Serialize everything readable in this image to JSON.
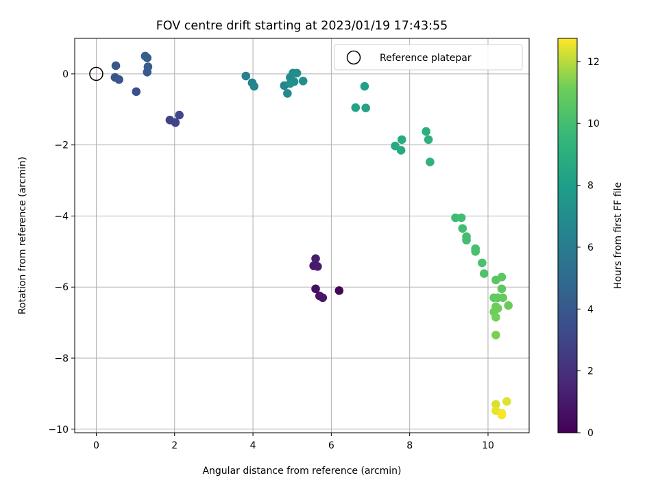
{
  "chart_data": {
    "type": "scatter",
    "title": "FOV centre drift starting at 2023/01/19 17:43:55",
    "xlabel": "Angular distance from reference (arcmin)",
    "ylabel": "Rotation from reference (arcmin)",
    "xlim": [
      -0.55,
      11.05
    ],
    "ylim": [
      -10.1,
      1.0
    ],
    "xticks": [
      0,
      2,
      4,
      6,
      8,
      10
    ],
    "yticks": [
      0,
      -2,
      -4,
      -6,
      -8,
      -10
    ],
    "xtick_labels": [
      "0",
      "2",
      "4",
      "6",
      "8",
      "10"
    ],
    "ytick_labels": [
      "0",
      "−2",
      "−4",
      "−6",
      "−8",
      "−10"
    ],
    "grid": true,
    "legend": {
      "placement": "top-right",
      "entries": [
        "Reference platepar"
      ]
    },
    "reference_point": {
      "x": 0,
      "y": 0,
      "label": "Reference platepar"
    },
    "colorbar": {
      "label": "Hours from first FF file",
      "colormap": "viridis",
      "range": [
        0,
        12.75
      ],
      "ticks": [
        0,
        2,
        4,
        6,
        8,
        10,
        12
      ],
      "tick_labels": [
        "0",
        "2",
        "4",
        "6",
        "8",
        "10",
        "12"
      ]
    },
    "points": [
      {
        "x": 6.2,
        "y": -6.1,
        "t": 0.2
      },
      {
        "x": 5.6,
        "y": -6.05,
        "t": 0.6
      },
      {
        "x": 5.7,
        "y": -6.25,
        "t": 0.8
      },
      {
        "x": 5.78,
        "y": -6.3,
        "t": 0.9
      },
      {
        "x": 5.55,
        "y": -5.4,
        "t": 1.0
      },
      {
        "x": 5.65,
        "y": -5.42,
        "t": 1.1
      },
      {
        "x": 5.6,
        "y": -5.2,
        "t": 1.2
      },
      {
        "x": 1.88,
        "y": -1.3,
        "t": 2.9
      },
      {
        "x": 2.02,
        "y": -1.37,
        "t": 3.0
      },
      {
        "x": 2.12,
        "y": -1.16,
        "t": 3.1
      },
      {
        "x": 1.02,
        "y": -0.5,
        "t": 3.5
      },
      {
        "x": 0.48,
        "y": -0.1,
        "t": 3.7
      },
      {
        "x": 0.58,
        "y": -0.16,
        "t": 3.8
      },
      {
        "x": 0.5,
        "y": 0.23,
        "t": 3.9
      },
      {
        "x": 1.3,
        "y": 0.05,
        "t": 4.0
      },
      {
        "x": 1.32,
        "y": 0.2,
        "t": 4.1
      },
      {
        "x": 1.3,
        "y": 0.45,
        "t": 4.2
      },
      {
        "x": 1.25,
        "y": 0.5,
        "t": 4.3
      },
      {
        "x": 3.82,
        "y": -0.06,
        "t": 6.3
      },
      {
        "x": 3.98,
        "y": -0.25,
        "t": 6.4
      },
      {
        "x": 4.03,
        "y": -0.35,
        "t": 6.5
      },
      {
        "x": 4.8,
        "y": -0.33,
        "t": 6.6
      },
      {
        "x": 4.88,
        "y": -0.55,
        "t": 6.7
      },
      {
        "x": 4.95,
        "y": -0.1,
        "t": 6.8
      },
      {
        "x": 5.02,
        "y": 0.02,
        "t": 6.9
      },
      {
        "x": 5.12,
        "y": 0.02,
        "t": 7.0
      },
      {
        "x": 5.05,
        "y": -0.22,
        "t": 7.0
      },
      {
        "x": 5.28,
        "y": -0.2,
        "t": 7.1
      },
      {
        "x": 4.95,
        "y": -0.27,
        "t": 7.2
      },
      {
        "x": 6.85,
        "y": -0.35,
        "t": 8.1
      },
      {
        "x": 6.62,
        "y": -0.95,
        "t": 8.2
      },
      {
        "x": 6.88,
        "y": -0.96,
        "t": 8.3
      },
      {
        "x": 7.63,
        "y": -2.03,
        "t": 8.6
      },
      {
        "x": 7.78,
        "y": -2.15,
        "t": 8.7
      },
      {
        "x": 7.8,
        "y": -1.85,
        "t": 8.8
      },
      {
        "x": 8.42,
        "y": -1.62,
        "t": 9.0
      },
      {
        "x": 8.48,
        "y": -1.85,
        "t": 9.1
      },
      {
        "x": 8.52,
        "y": -2.48,
        "t": 9.2
      },
      {
        "x": 9.17,
        "y": -4.05,
        "t": 9.8
      },
      {
        "x": 9.32,
        "y": -4.05,
        "t": 9.9
      },
      {
        "x": 9.35,
        "y": -4.35,
        "t": 9.9
      },
      {
        "x": 9.45,
        "y": -4.58,
        "t": 10.0
      },
      {
        "x": 9.45,
        "y": -4.68,
        "t": 10.0
      },
      {
        "x": 9.68,
        "y": -4.92,
        "t": 10.1
      },
      {
        "x": 9.68,
        "y": -5.0,
        "t": 10.1
      },
      {
        "x": 9.85,
        "y": -5.32,
        "t": 10.2
      },
      {
        "x": 9.9,
        "y": -5.62,
        "t": 10.3
      },
      {
        "x": 10.2,
        "y": -5.8,
        "t": 10.5
      },
      {
        "x": 10.35,
        "y": -5.72,
        "t": 10.6
      },
      {
        "x": 10.35,
        "y": -6.05,
        "t": 10.7
      },
      {
        "x": 10.15,
        "y": -6.3,
        "t": 10.8
      },
      {
        "x": 10.25,
        "y": -6.3,
        "t": 10.8
      },
      {
        "x": 10.38,
        "y": -6.3,
        "t": 10.9
      },
      {
        "x": 10.52,
        "y": -6.52,
        "t": 11.0
      },
      {
        "x": 10.2,
        "y": -6.55,
        "t": 11.0
      },
      {
        "x": 10.25,
        "y": -6.6,
        "t": 11.1
      },
      {
        "x": 10.15,
        "y": -6.7,
        "t": 11.1
      },
      {
        "x": 10.2,
        "y": -6.85,
        "t": 11.2
      },
      {
        "x": 10.2,
        "y": -7.35,
        "t": 11.3
      },
      {
        "x": 10.2,
        "y": -9.3,
        "t": 12.3
      },
      {
        "x": 10.48,
        "y": -9.22,
        "t": 12.4
      },
      {
        "x": 10.2,
        "y": -9.48,
        "t": 12.5
      },
      {
        "x": 10.35,
        "y": -9.55,
        "t": 12.6
      },
      {
        "x": 10.35,
        "y": -9.6,
        "t": 12.7
      }
    ]
  }
}
